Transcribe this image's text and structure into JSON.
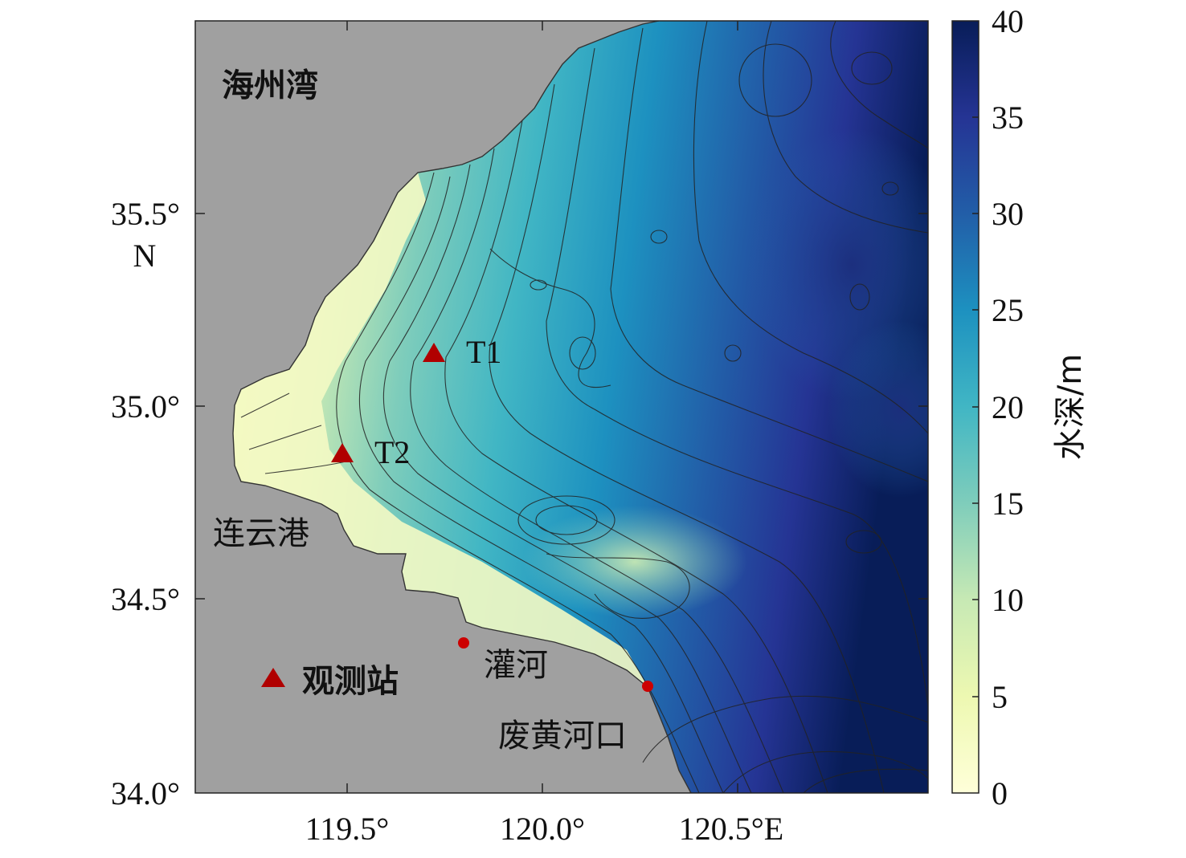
{
  "map": {
    "lat_ticks": [
      "35.5°",
      "35.0°",
      "34.5°",
      "34.0°"
    ],
    "lat_unit": "N",
    "lon_ticks": [
      "119.5°",
      "120.0°",
      "120.5°E"
    ],
    "place_labels": {
      "bay": "海州湾",
      "port": "连云港",
      "river": "灌河",
      "estuary": "废黄河口"
    },
    "stations": {
      "t1": "T1",
      "t2": "T2"
    },
    "legend_label": "观测站"
  },
  "colorbar": {
    "label": "水深/m",
    "ticks": [
      "0",
      "5",
      "10",
      "15",
      "20",
      "25",
      "30",
      "35",
      "40"
    ]
  },
  "colors": {
    "land": "#a0a0a0",
    "marker": "#b00000",
    "depth_shallow": "#ffffd9",
    "depth_deep": "#081d58"
  }
}
